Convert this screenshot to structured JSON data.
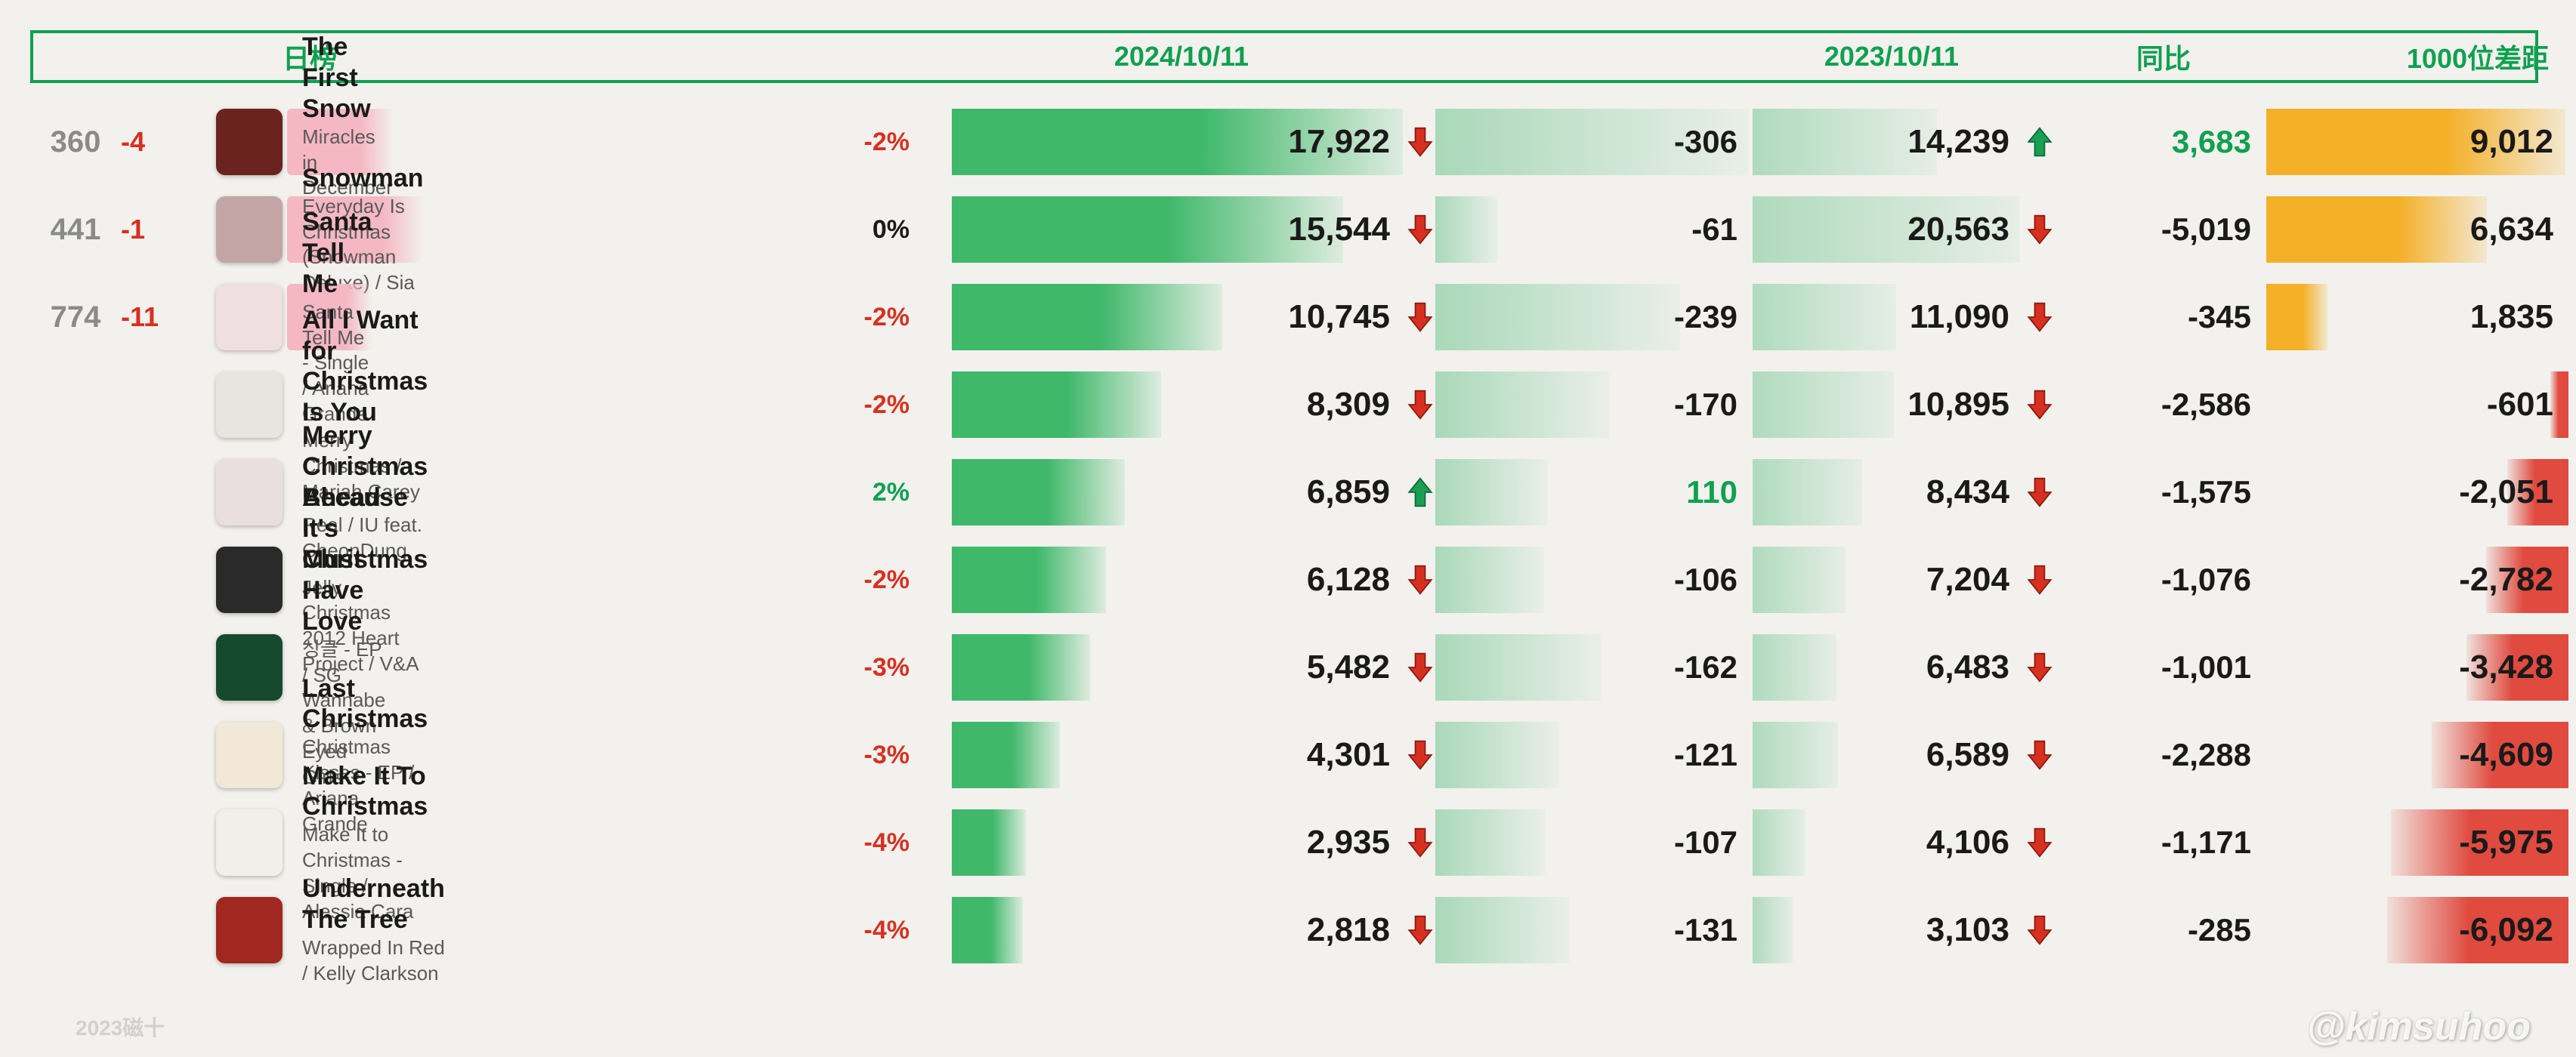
{
  "header": {
    "col_left": "日榜",
    "col_date1": "2024/10/11",
    "col_date2": "2023/10/11",
    "col_yoy": "同比",
    "col_gap": "1000位差距"
  },
  "colors": {
    "accent_green": "#0fa050",
    "down_red": "#d73020",
    "up_green": "#1a9f55",
    "text": "#1a1a1a",
    "text_muted": "#8a8a8a",
    "bar_green": "#3fb86a",
    "bar_orange": "#f4b028",
    "bar_red": "#e04a3f",
    "highlight_pink": "#f5b8c2"
  },
  "scales": {
    "v2024_max": 18000,
    "delta_max": 310,
    "v2023_max": 21000,
    "gap_pos_max": 9100,
    "gap_neg_max": 6100
  },
  "rows": [
    {
      "rank": 360,
      "rank_delta": "-4",
      "highlight": true,
      "thumb": "#6b231f",
      "title": "The First Snow",
      "subtitle": "Miracles in December - EP / EXO",
      "pct": "-2%",
      "pct_color": "#d73020",
      "v2024": 17922,
      "v2024_label": "17,922",
      "dir1": "down",
      "delta": -306,
      "delta_label": "-306",
      "v2023": 14239,
      "v2023_label": "14,239",
      "dir2": "up",
      "yoy": 3683,
      "yoy_label": "3,683",
      "yoy_color": "#0fa050",
      "gap": 9012,
      "gap_label": "9,012"
    },
    {
      "rank": 441,
      "rank_delta": "-1",
      "highlight": true,
      "thumb": "#c3a5a5",
      "title": "Snowman",
      "subtitle": "Everyday Is Christmas (Snowman Deluxe) / Sia",
      "pct": "0%",
      "pct_color": "#1a1a1a",
      "v2024": 15544,
      "v2024_label": "15,544",
      "dir1": "down",
      "delta": -61,
      "delta_label": "-61",
      "v2023": 20563,
      "v2023_label": "20,563",
      "dir2": "down",
      "yoy": -5019,
      "yoy_label": "-5,019",
      "yoy_color": "#1a1a1a",
      "gap": 6634,
      "gap_label": "6,634"
    },
    {
      "rank": 774,
      "rank_delta": "-11",
      "highlight": true,
      "thumb": "#f0dfe0",
      "title": "Santa Tell Me",
      "subtitle": "Santa Tell Me - Single / Ariana Grande",
      "pct": "-2%",
      "pct_color": "#d73020",
      "v2024": 10745,
      "v2024_label": "10,745",
      "dir1": "down",
      "delta": -239,
      "delta_label": "-239",
      "v2023": 11090,
      "v2023_label": "11,090",
      "dir2": "down",
      "yoy": -345,
      "yoy_label": "-345",
      "yoy_color": "#1a1a1a",
      "gap": 1835,
      "gap_label": "1,835"
    },
    {
      "rank": null,
      "rank_delta": "",
      "highlight": false,
      "thumb": "#e8e4de",
      "title": "All I Want for Christmas Is You",
      "subtitle": "Merry Christmas / Mariah Carey",
      "pct": "-2%",
      "pct_color": "#d73020",
      "v2024": 8309,
      "v2024_label": "8,309",
      "dir1": "down",
      "delta": -170,
      "delta_label": "-170",
      "v2023": 10895,
      "v2023_label": "10,895",
      "dir2": "down",
      "yoy": -2586,
      "yoy_label": "-2,586",
      "yoy_color": "#1a1a1a",
      "gap": -601,
      "gap_label": "-601"
    },
    {
      "rank": null,
      "rank_delta": "",
      "highlight": false,
      "thumb": "#e9dfe0",
      "title": "Merry Christmas Ahead",
      "subtitle": "Real / IU feat. CheonDung",
      "pct": "2%",
      "pct_color": "#0fa050",
      "v2024": 6859,
      "v2024_label": "6,859",
      "dir1": "up",
      "delta": 110,
      "delta_label": "110",
      "v2023": 8434,
      "v2023_label": "8,434",
      "dir2": "down",
      "yoy": -1575,
      "yoy_label": "-1,575",
      "yoy_color": "#1a1a1a",
      "gap": -2051,
      "gap_label": "-2,051"
    },
    {
      "rank": null,
      "rank_delta": "",
      "highlight": false,
      "thumb": "#2a2a2a",
      "title": "Because It's Christmas",
      "subtitle": "Jelly Christmas 2012 Heart Project  / V&A",
      "pct": "-2%",
      "pct_color": "#d73020",
      "v2024": 6128,
      "v2024_label": "6,128",
      "dir1": "down",
      "delta": -106,
      "delta_label": "-106",
      "v2023": 7204,
      "v2023_label": "7,204",
      "dir2": "down",
      "yoy": -1076,
      "yoy_label": "-1,076",
      "yoy_color": "#1a1a1a",
      "gap": -2782,
      "gap_label": "-2,782"
    },
    {
      "rank": null,
      "rank_delta": "",
      "highlight": false,
      "thumb": "#154a2e",
      "title": "Must Have Love",
      "subtitle": "싱글 - EP / SG Wannabe & Brown Eyed Girls",
      "pct": "-3%",
      "pct_color": "#d73020",
      "v2024": 5482,
      "v2024_label": "5,482",
      "dir1": "down",
      "delta": -162,
      "delta_label": "-162",
      "v2023": 6483,
      "v2023_label": "6,483",
      "dir2": "down",
      "yoy": -1001,
      "yoy_label": "-1,001",
      "yoy_color": "#1a1a1a",
      "gap": -3428,
      "gap_label": "-3,428"
    },
    {
      "rank": null,
      "rank_delta": "",
      "highlight": false,
      "thumb": "#f1e8d8",
      "title": "Last Christmas",
      "subtitle": "Christmas Kisses - EP / Ariana Grande",
      "pct": "-3%",
      "pct_color": "#d73020",
      "v2024": 4301,
      "v2024_label": "4,301",
      "dir1": "down",
      "delta": -121,
      "delta_label": "-121",
      "v2023": 6589,
      "v2023_label": "6,589",
      "dir2": "down",
      "yoy": -2288,
      "yoy_label": "-2,288",
      "yoy_color": "#1a1a1a",
      "gap": -4609,
      "gap_label": "-4,609"
    },
    {
      "rank": null,
      "rank_delta": "",
      "highlight": false,
      "thumb": "#f2efe9",
      "title": "Make It To Christmas",
      "subtitle": "Make It to Christmas - Single / Alessia Cara",
      "pct": "-4%",
      "pct_color": "#d73020",
      "v2024": 2935,
      "v2024_label": "2,935",
      "dir1": "down",
      "delta": -107,
      "delta_label": "-107",
      "v2023": 4106,
      "v2023_label": "4,106",
      "dir2": "down",
      "yoy": -1171,
      "yoy_label": "-1,171",
      "yoy_color": "#1a1a1a",
      "gap": -5975,
      "gap_label": "-5,975"
    },
    {
      "rank": null,
      "rank_delta": "",
      "highlight": false,
      "thumb": "#a02820",
      "title": "Underneath The Tree",
      "subtitle": "Wrapped In Red / Kelly Clarkson",
      "pct": "-4%",
      "pct_color": "#d73020",
      "v2024": 2818,
      "v2024_label": "2,818",
      "dir1": "down",
      "delta": -131,
      "delta_label": "-131",
      "v2023": 3103,
      "v2023_label": "3,103",
      "dir2": "down",
      "yoy": -285,
      "yoy_label": "-285",
      "yoy_color": "#1a1a1a",
      "gap": -6092,
      "gap_label": "-6,092"
    }
  ],
  "watermark": "@kimsuhoo",
  "footer_mark": "2023磁十"
}
